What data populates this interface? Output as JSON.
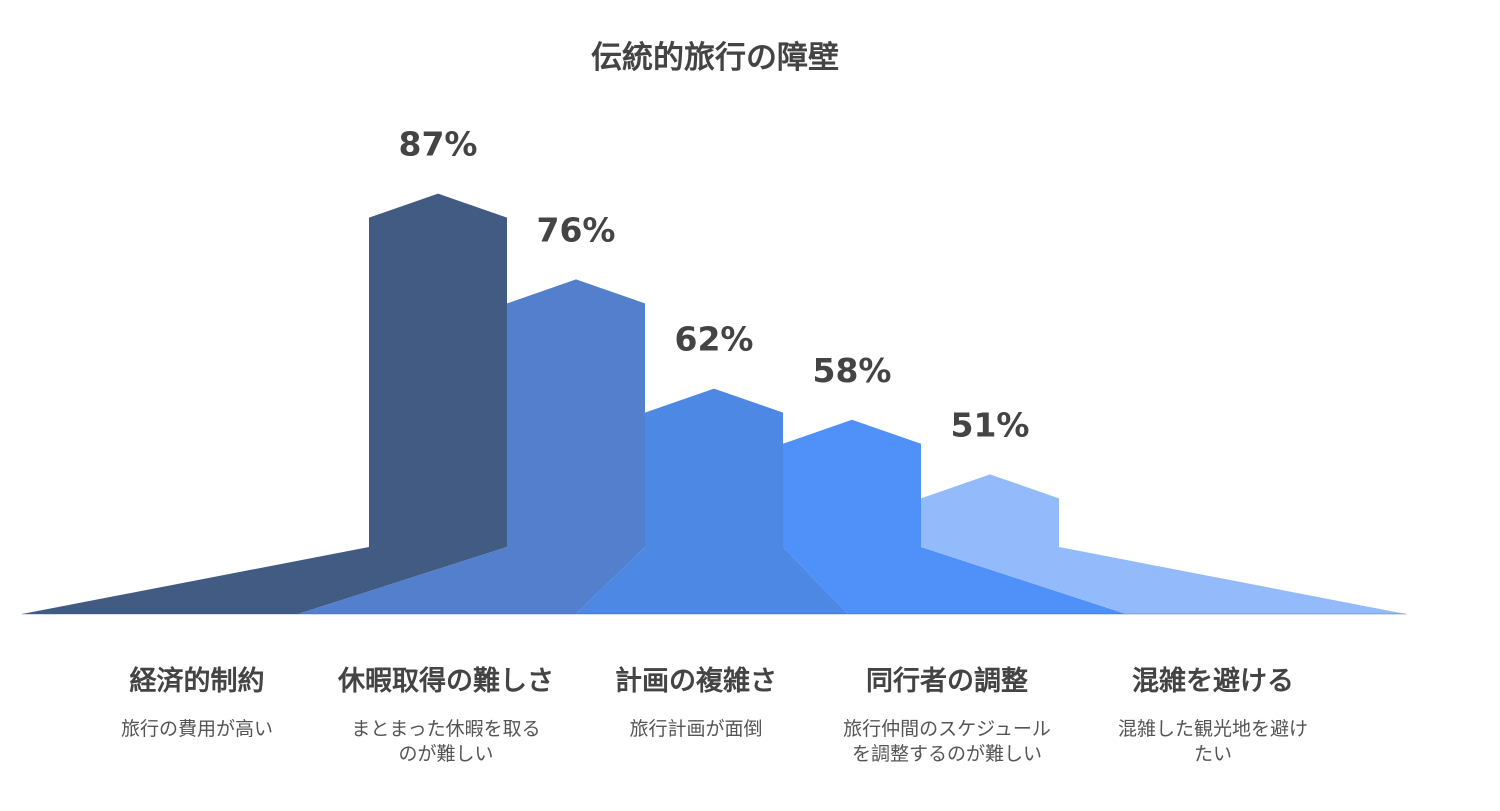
{
  "chart_data": {
    "type": "bar",
    "title": "伝統的旅行の障壁",
    "categories": [
      "経済的制約",
      "休暇取得の難しさ",
      "計画の複雑さ",
      "同行者の調整",
      "混雑を避ける"
    ],
    "descriptions": [
      [
        "旅行の費用が高い"
      ],
      [
        "まとまった休暇を取る",
        "のが難しい"
      ],
      [
        "旅行計画が面倒"
      ],
      [
        "旅行仲間のスケジュール",
        "を調整するのが難しい"
      ],
      [
        "混雑した観光地を避け",
        "たい"
      ]
    ],
    "values": [
      87,
      76,
      62,
      58,
      51
    ],
    "value_labels": [
      "87%",
      "76%",
      "62%",
      "58%",
      "51%"
    ],
    "colors": [
      "#425b83",
      "#537fcc",
      "#4d88e4",
      "#4f90f9",
      "#93bbfb"
    ],
    "ylim": [
      0,
      100
    ],
    "grid": false,
    "legend": "none"
  }
}
